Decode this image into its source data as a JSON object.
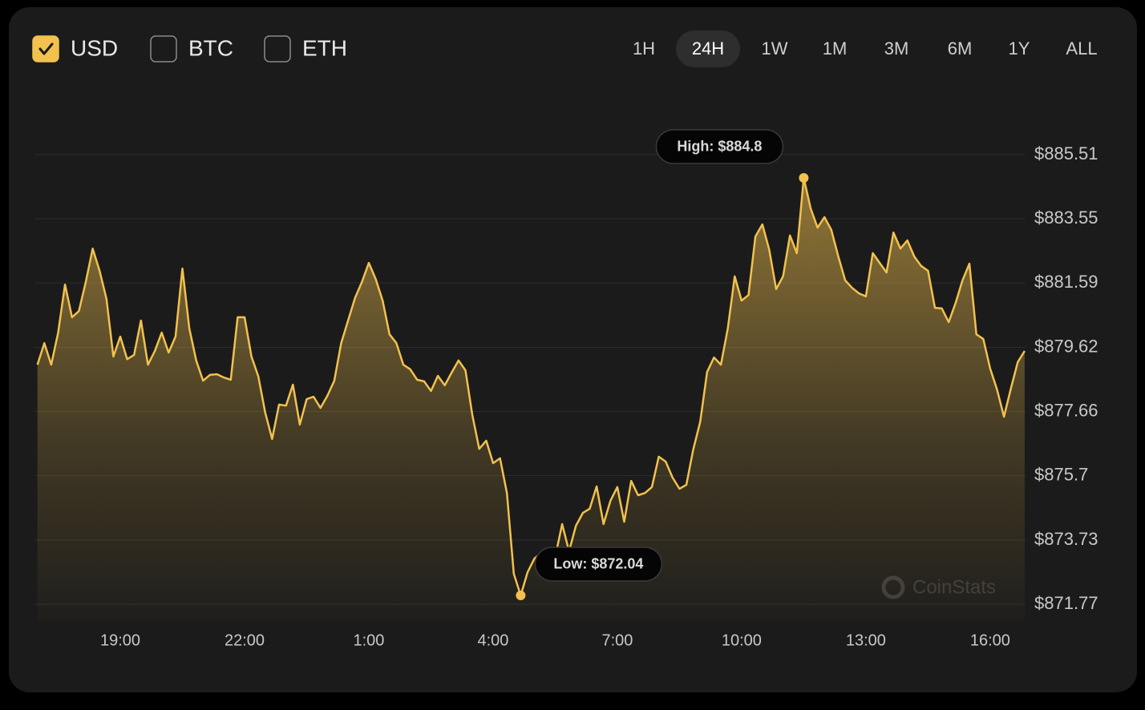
{
  "currencies": [
    {
      "label": "USD",
      "checked": true
    },
    {
      "label": "BTC",
      "checked": false
    },
    {
      "label": "ETH",
      "checked": false
    }
  ],
  "ranges": [
    "1H",
    "24H",
    "1W",
    "1M",
    "3M",
    "6M",
    "1Y",
    "ALL"
  ],
  "active_range": "24H",
  "watermark": "CoinStats",
  "chart_data": {
    "type": "line",
    "color": "#f2c14e",
    "grid": true,
    "x": [
      "17:00",
      "17:10",
      "17:20",
      "17:30",
      "17:40",
      "17:50",
      "18:00",
      "18:10",
      "18:20",
      "18:30",
      "18:40",
      "18:50",
      "19:00",
      "19:10",
      "19:20",
      "19:30",
      "19:40",
      "19:50",
      "20:00",
      "20:10",
      "20:20",
      "20:30",
      "20:40",
      "20:50",
      "21:00",
      "21:10",
      "21:20",
      "21:30",
      "21:40",
      "21:50",
      "22:00",
      "22:10",
      "22:20",
      "22:30",
      "22:40",
      "22:50",
      "23:00",
      "23:10",
      "23:20",
      "23:30",
      "23:40",
      "23:50",
      "0:00",
      "0:10",
      "0:20",
      "0:30",
      "0:40",
      "0:50",
      "1:00",
      "1:10",
      "1:20",
      "1:30",
      "1:40",
      "1:50",
      "2:00",
      "2:10",
      "2:20",
      "2:30",
      "2:40",
      "2:50",
      "3:00",
      "3:10",
      "3:20",
      "3:30",
      "3:40",
      "3:50",
      "4:00",
      "4:10",
      "4:20",
      "4:30",
      "4:40",
      "4:50",
      "5:00",
      "5:10",
      "5:20",
      "5:30",
      "5:40",
      "5:50",
      "6:00",
      "6:10",
      "6:20",
      "6:30",
      "6:40",
      "6:50",
      "7:00",
      "7:10",
      "7:20",
      "7:30",
      "7:40",
      "7:50",
      "8:00",
      "8:10",
      "8:20",
      "8:30",
      "8:40",
      "8:50",
      "9:00",
      "9:10",
      "9:20",
      "9:30",
      "9:40",
      "9:50",
      "10:00",
      "10:10",
      "10:20",
      "10:30",
      "10:40",
      "10:50",
      "11:00",
      "11:10",
      "11:20",
      "11:30",
      "11:40",
      "11:50",
      "12:00",
      "12:10",
      "12:20",
      "12:30",
      "12:40",
      "12:50",
      "13:00",
      "13:10",
      "13:20",
      "13:30",
      "13:40",
      "13:50",
      "14:00",
      "14:10",
      "14:20",
      "14:30",
      "14:40",
      "14:50",
      "15:00",
      "15:10",
      "15:20",
      "15:30",
      "15:40",
      "15:50",
      "16:00",
      "16:10",
      "16:20",
      "16:30",
      "16:40",
      "16:50"
    ],
    "values": [
      879.09,
      879.75,
      879.09,
      880.07,
      881.54,
      880.54,
      880.73,
      881.62,
      882.64,
      881.96,
      881.1,
      879.34,
      879.95,
      879.26,
      879.39,
      880.44,
      879.09,
      879.51,
      880.07,
      879.46,
      879.95,
      882.03,
      880.2,
      879.22,
      878.6,
      878.78,
      878.8,
      878.7,
      878.63,
      880.54,
      880.54,
      879.34,
      878.73,
      877.62,
      876.82,
      877.87,
      877.84,
      878.48,
      877.26,
      878.04,
      878.11,
      877.77,
      878.14,
      878.6,
      879.75,
      880.44,
      881.13,
      881.62,
      882.2,
      881.71,
      881.05,
      880.02,
      879.75,
      879.09,
      878.95,
      878.63,
      878.58,
      878.29,
      878.75,
      878.46,
      878.85,
      879.22,
      878.92,
      877.55,
      876.52,
      876.77,
      876.08,
      876.23,
      875.17,
      872.7,
      872.04,
      872.75,
      873.17,
      873.34,
      873.39,
      873.22,
      874.22,
      873.39,
      874.17,
      874.56,
      874.69,
      875.37,
      874.22,
      874.93,
      875.35,
      874.29,
      875.54,
      875.1,
      875.17,
      875.35,
      876.28,
      876.13,
      875.64,
      875.3,
      875.42,
      876.5,
      877.35,
      878.87,
      879.31,
      879.09,
      880.2,
      881.79,
      881.05,
      881.22,
      883.01,
      883.38,
      882.6,
      881.4,
      881.79,
      883.04,
      882.5,
      884.8,
      883.87,
      883.28,
      883.6,
      883.21,
      882.4,
      881.67,
      881.44,
      881.27,
      881.18,
      882.5,
      882.2,
      881.91,
      883.13,
      882.64,
      882.89,
      882.4,
      882.11,
      881.96,
      880.83,
      880.81,
      880.39,
      880.98,
      881.67,
      882.18,
      880.02,
      879.88,
      878.97,
      878.33,
      877.5,
      878.36,
      879.17,
      879.51
    ],
    "xticks": [
      "19:00",
      "22:00",
      "1:00",
      "4:00",
      "7:00",
      "10:00",
      "13:00",
      "16:00"
    ],
    "ylim": [
      871.77,
      885.51
    ],
    "yticks": [
      {
        "value": 885.51,
        "label": "$885.51"
      },
      {
        "value": 883.55,
        "label": "$883.55"
      },
      {
        "value": 881.59,
        "label": "$881.59"
      },
      {
        "value": 879.62,
        "label": "$879.62"
      },
      {
        "value": 877.66,
        "label": "$877.66"
      },
      {
        "value": 875.7,
        "label": "$875.7"
      },
      {
        "value": 873.73,
        "label": "$873.73"
      },
      {
        "value": 871.77,
        "label": "$871.77"
      }
    ],
    "annotations": [
      {
        "text": "High: $884.8",
        "x": "11:30",
        "value": 884.8,
        "position": "above"
      },
      {
        "text": "Low: $872.04",
        "x": "4:40",
        "value": 872.04,
        "position": "right"
      }
    ]
  }
}
